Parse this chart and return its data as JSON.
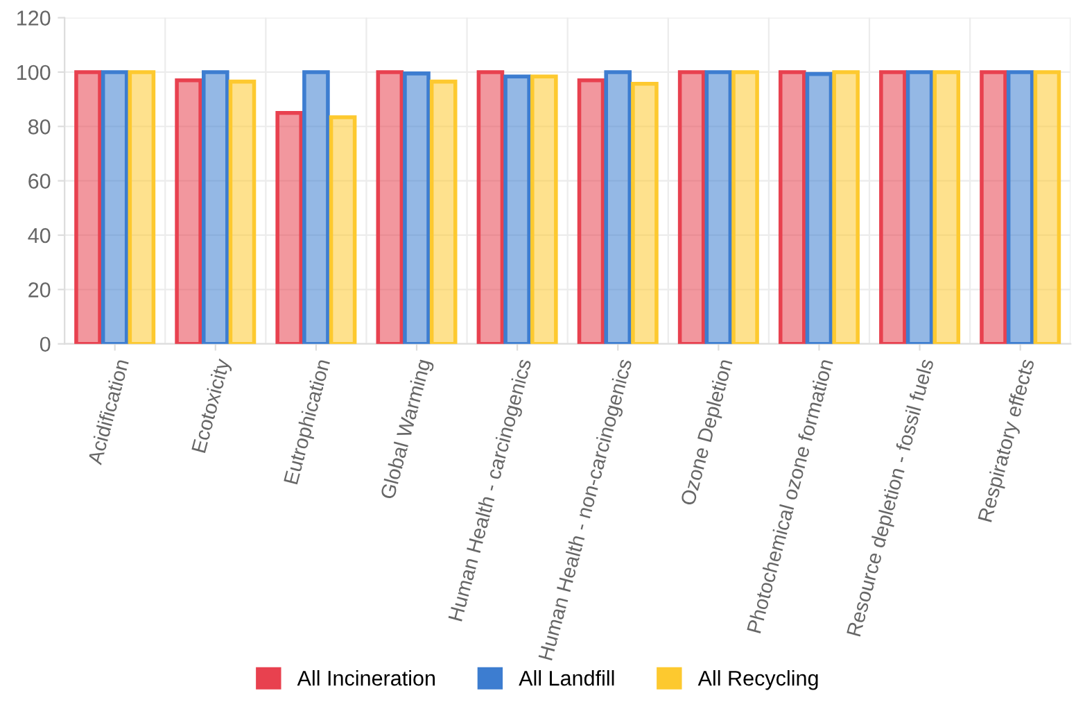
{
  "chart_data": {
    "type": "bar",
    "categories": [
      "Acidification",
      "Ecotoxicity",
      "Eutrophication",
      "Global Warming",
      "Human Health - carcinogenics",
      "Human Health - non-carcinogenics",
      "Ozone Depletion",
      "Photochemical ozone formation",
      "Resource depletion - fossil fuels",
      "Respiratory effects"
    ],
    "series": [
      {
        "name": "All Incineration",
        "color": "#e8414f",
        "values": [
          100,
          97,
          85,
          100,
          100,
          97,
          100,
          100,
          100,
          100
        ]
      },
      {
        "name": "All Landfill",
        "color": "#3d7dd0",
        "values": [
          100,
          100,
          100,
          99.5,
          98.4,
          100,
          100,
          99.3,
          100,
          100
        ]
      },
      {
        "name": "All Recycling",
        "color": "#fdc92f",
        "values": [
          100,
          96.5,
          83.4,
          96.5,
          98.4,
          95.7,
          100,
          100,
          100,
          100
        ]
      }
    ],
    "ylim": [
      0,
      120
    ],
    "yticks": [
      0,
      20,
      40,
      60,
      80,
      100,
      120
    ],
    "grid": true,
    "legend": "bottom"
  }
}
